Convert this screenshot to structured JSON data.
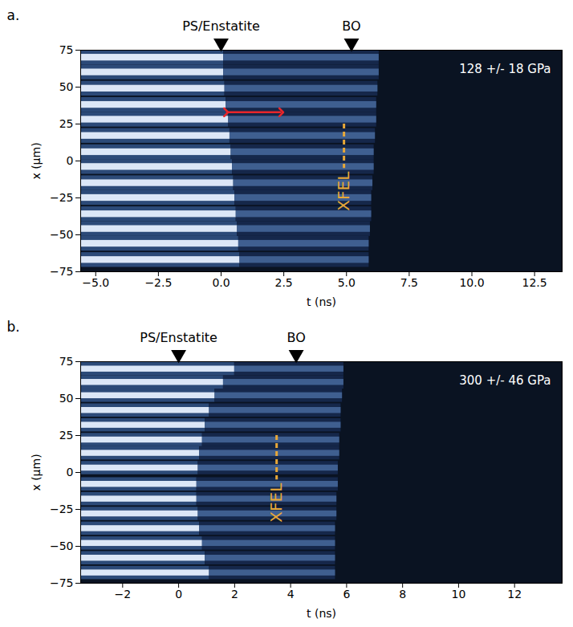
{
  "chart_data": [
    {
      "type": "image",
      "title": "a.",
      "x_label": "t (ns)",
      "y_label": "x (µm)",
      "xlim": [
        -5.6,
        13.6
      ],
      "xticks": [
        {
          "value": -5,
          "label": "−5.0"
        },
        {
          "value": -2.5,
          "label": "−2.5"
        },
        {
          "value": 0,
          "label": "0.0"
        },
        {
          "value": 2.5,
          "label": "2.5"
        },
        {
          "value": 5,
          "label": "5.0"
        },
        {
          "value": 7.5,
          "label": "7.5"
        },
        {
          "value": 10,
          "label": "10.0"
        },
        {
          "value": 12.5,
          "label": "12.5"
        }
      ],
      "ylim": [
        -75,
        75
      ],
      "yticks": [
        {
          "value": -75,
          "label": "−75"
        },
        {
          "value": -50,
          "label": "−50"
        },
        {
          "value": -25,
          "label": "−25"
        },
        0,
        25,
        50,
        75
      ],
      "fringes": {
        "y": [
          70,
          60,
          49,
          38,
          28,
          17,
          6,
          -4,
          -15,
          -25,
          -36,
          -46,
          -56,
          -67
        ],
        "t_front": [
          0.1,
          0.1,
          0.15,
          0.2,
          0.3,
          0.35,
          0.4,
          0.45,
          0.5,
          0.55,
          0.6,
          0.65,
          0.7,
          0.75
        ],
        "t_blackout": [
          6.3,
          6.3,
          6.25,
          6.2,
          6.2,
          6.15,
          6.1,
          6.1,
          6.05,
          6.0,
          6.0,
          5.95,
          5.9,
          5.9
        ]
      },
      "markers": [
        {
          "label": "PS/Enstatite",
          "t": 0
        },
        {
          "label": "BO",
          "t": 5.2
        }
      ],
      "pressure": "128 +/- 18 GPa",
      "xfel": {
        "label": "XFEL",
        "t": 4.9,
        "y": [
          25,
          -5
        ],
        "color": "#e8a838"
      },
      "span": {
        "t": [
          0.2,
          2.4
        ],
        "y": 33,
        "color": "#e8262a"
      }
    },
    {
      "type": "image",
      "title": "b.",
      "x_label": "t (ns)",
      "y_label": "x (µm)",
      "xlim": [
        -3.5,
        13.7
      ],
      "xticks": [
        {
          "value": -2,
          "label": "−2"
        },
        0,
        2,
        4,
        6,
        8,
        10,
        12
      ],
      "ylim": [
        -75,
        75
      ],
      "yticks": [
        {
          "value": -75,
          "label": "−75"
        },
        {
          "value": -50,
          "label": "−50"
        },
        {
          "value": -25,
          "label": "−25"
        },
        0,
        25,
        50,
        75
      ],
      "fringes": {
        "y": [
          70,
          61,
          52,
          42,
          32,
          22,
          13,
          3,
          -8,
          -18,
          -28,
          -38,
          -48,
          -58,
          -68
        ],
        "t_front": [
          2.0,
          1.6,
          1.3,
          1.1,
          0.95,
          0.85,
          0.75,
          0.7,
          0.65,
          0.65,
          0.7,
          0.75,
          0.85,
          0.95,
          1.1
        ],
        "t_blackout": [
          5.9,
          5.9,
          5.85,
          5.8,
          5.8,
          5.75,
          5.75,
          5.7,
          5.7,
          5.65,
          5.65,
          5.6,
          5.6,
          5.6,
          5.6
        ]
      },
      "markers": [
        {
          "label": "PS/Enstatite",
          "t": 0
        },
        {
          "label": "BO",
          "t": 4.2
        }
      ],
      "pressure": "300 +/- 46 GPa",
      "xfel": {
        "label": "XFEL",
        "t": 3.5,
        "y": [
          25,
          -5
        ],
        "color": "#e8a838"
      }
    }
  ]
}
